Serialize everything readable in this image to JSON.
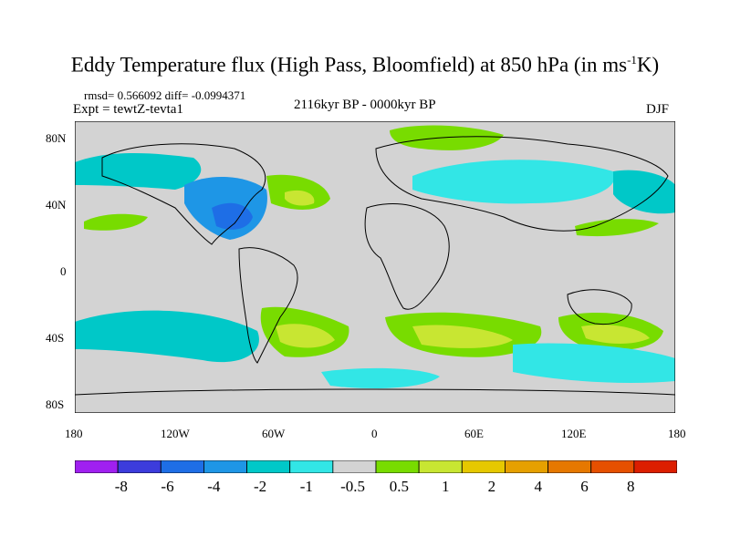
{
  "title": "Eddy Temperature flux (High Pass, Bloomfield) at 850 hPa (in ms",
  "title_sup": "-1",
  "title_end": "K)",
  "stats": "rmsd= 0.566092 diff= -0.0994371",
  "experiment": "Expt = tewtZ-tevta1",
  "period": "2116kyr BP - 0000kyr BP",
  "season": "DJF",
  "colors": {
    "land_bg": "#d3d3d3",
    "neg": [
      "#a020f0",
      "#3c3cdc",
      "#1e6ee6",
      "#1e96e6",
      "#00c8c8",
      "#32e6e6"
    ],
    "zero": "#d3d3d3",
    "pos": [
      "#78dc00",
      "#c8e632",
      "#e6c800",
      "#e6a000",
      "#e67800",
      "#e65000",
      "#dc1e00"
    ]
  },
  "axes": {
    "lon_labels": [
      "180",
      "120W",
      "60W",
      "0",
      "60E",
      "120E",
      "180"
    ],
    "lat_labels": [
      "80N",
      "40N",
      "0",
      "40S",
      "80S"
    ]
  },
  "colorbar": {
    "labels": [
      "-8",
      "-6",
      "-4",
      "-2",
      "-1",
      "-0.5",
      "0.5",
      "1",
      "2",
      "4",
      "6",
      "8"
    ]
  }
}
